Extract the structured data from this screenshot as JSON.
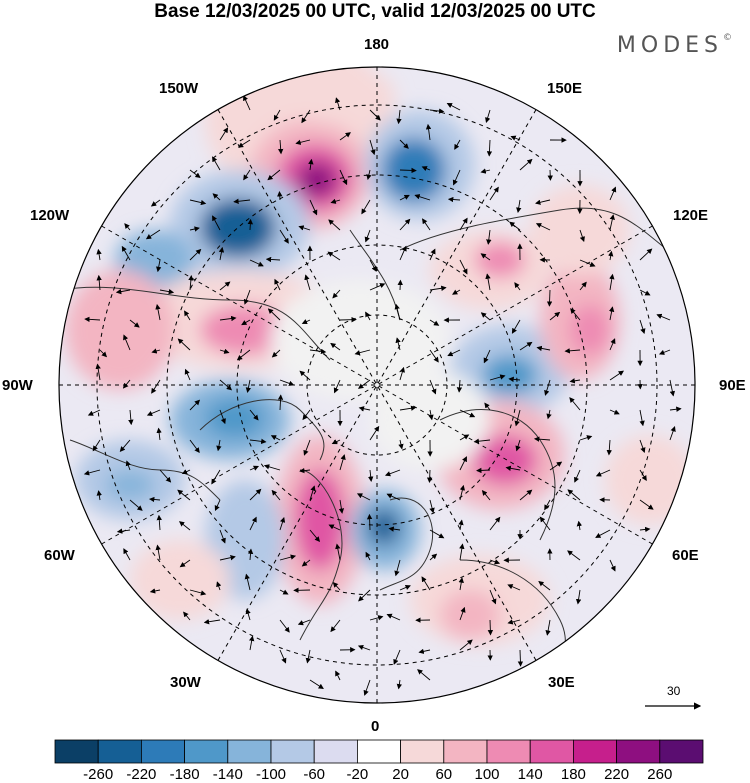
{
  "title": "Base 12/03/2025 00 UTC, valid 12/03/2025 00 UTC",
  "brand": "MODES",
  "brand_mark": "©",
  "longitude_labels": {
    "top": "180",
    "bottom": "0",
    "left": "90W",
    "right": "90E",
    "upper_left_1": "150W",
    "upper_left_2": "120W",
    "upper_right_1": "150E",
    "upper_right_2": "120E",
    "lower_left_1": "60W",
    "lower_left_2": "30W",
    "lower_right_1": "60E",
    "lower_right_2": "30E"
  },
  "vector_scale_label": "30",
  "colorbar": {
    "labels": [
      "-260",
      "-220",
      "-180",
      "-140",
      "-100",
      "-60",
      "-20",
      "20",
      "60",
      "100",
      "140",
      "180",
      "220",
      "260"
    ],
    "colors": [
      "#0b3f66",
      "#155f95",
      "#2d7bb8",
      "#4f98c9",
      "#86b4da",
      "#b4c9e6",
      "#dcdcf0",
      "#ffffff",
      "#f6d9d9",
      "#f3b5c2",
      "#ee8bb3",
      "#e057a4",
      "#c61f8c",
      "#8e0f80",
      "#5b0d71"
    ]
  },
  "chart_data": {
    "type": "heatmap",
    "projection": "north polar stereographic",
    "field_range": [
      -260,
      260
    ],
    "vector_reference": 30
  },
  "colors": {
    "land_line": "#333333",
    "grid_line": "#000000",
    "arrow": "#000000"
  }
}
